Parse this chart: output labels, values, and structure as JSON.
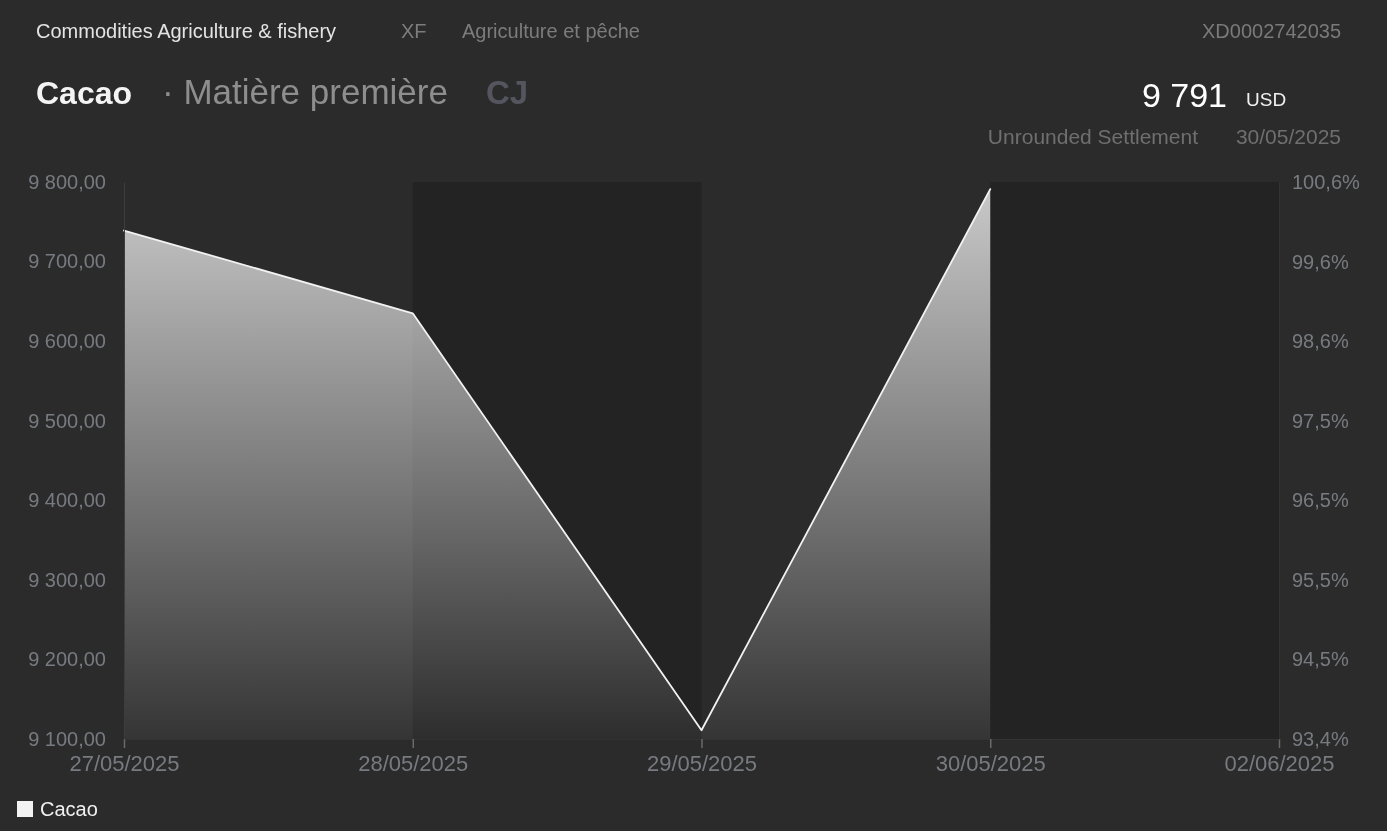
{
  "chart_data": {
    "type": "area",
    "title": "Cacao",
    "subtitle": "· Matière première",
    "annotations": [
      "Commodities Agriculture & fishery",
      "XF",
      "Agriculture et pêche",
      "XD0002742035",
      "CJ",
      "9 791",
      "USD",
      "Unrounded Settlement",
      "30/05/2025"
    ],
    "categories": [
      "27/05/2025",
      "28/05/2025",
      "29/05/2025",
      "30/05/2025",
      "02/06/2025"
    ],
    "series": [
      {
        "name": "Cacao",
        "color": "#f2f2f2",
        "values": [
          9739,
          9635,
          9111,
          9791,
          null
        ]
      }
    ],
    "ylim": [
      9100,
      9800
    ],
    "yticks": [
      {
        "value": 9100,
        "label": "9 100,00"
      },
      {
        "value": 9200,
        "label": "9 200,00"
      },
      {
        "value": 9300,
        "label": "9 300,00"
      },
      {
        "value": 9400,
        "label": "9 400,00"
      },
      {
        "value": 9500,
        "label": "9 500,00"
      },
      {
        "value": 9600,
        "label": "9 600,00"
      },
      {
        "value": 9700,
        "label": "9 700,00"
      },
      {
        "value": 9800,
        "label": "9 800,00"
      }
    ],
    "y2lim": [
      93.44,
      100.63
    ],
    "y2ticks": [
      {
        "value": 93.44,
        "label": "93,4%"
      },
      {
        "value": 94.47,
        "label": "94,5%"
      },
      {
        "value": 95.49,
        "label": "95,5%"
      },
      {
        "value": 96.52,
        "label": "96,5%"
      },
      {
        "value": 97.55,
        "label": "97,5%"
      },
      {
        "value": 98.57,
        "label": "98,6%"
      },
      {
        "value": 99.6,
        "label": "99,6%"
      },
      {
        "value": 100.63,
        "label": "100,6%"
      }
    ],
    "bands": [
      {
        "axis": "x",
        "from": "28/05/2025",
        "to": "29/05/2025",
        "color": "#232323"
      },
      {
        "axis": "x",
        "from": "30/05/2025",
        "to": "02/06/2025",
        "color": "#232323"
      }
    ],
    "legend": "bottom left"
  }
}
